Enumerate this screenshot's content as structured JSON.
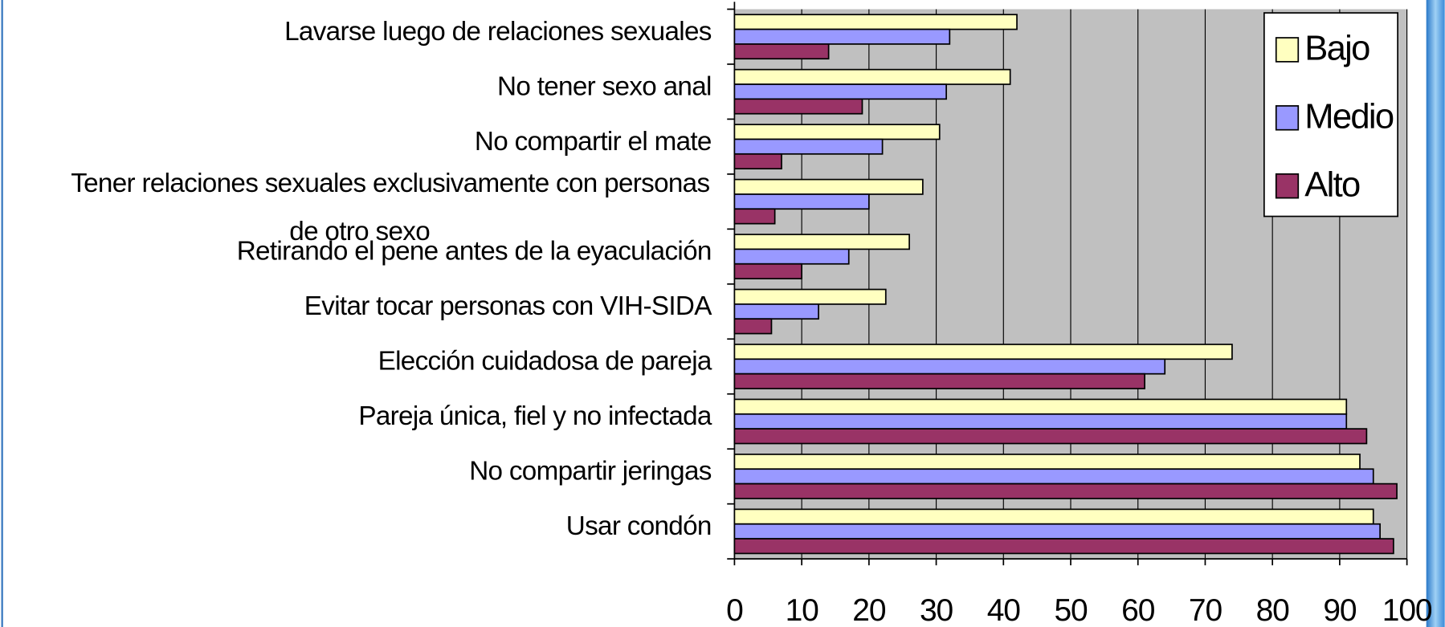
{
  "chart_data": {
    "type": "hbar",
    "categories": [
      "Lavarse luego de relaciones sexuales",
      "No tener sexo anal",
      "No compartir el mate",
      [
        "Tener relaciones sexuales exclusivamente con personas",
        "de otro sexo"
      ],
      "Retirando el pene antes de la eyaculación",
      "Evitar tocar personas con VIH-SIDA",
      "Elección cuidadosa de pareja",
      "Pareja única, fiel y no infectada",
      "No compartir jeringas",
      "Usar condón"
    ],
    "series": [
      {
        "name": "Bajo",
        "color": "#ffffc0",
        "values": [
          42,
          41,
          30.5,
          28,
          26,
          22.5,
          74,
          91,
          93,
          95
        ]
      },
      {
        "name": "Medio",
        "color": "#9999ff",
        "values": [
          32,
          31.5,
          22,
          20,
          17,
          12.5,
          64,
          91,
          95,
          96
        ]
      },
      {
        "name": "Alto",
        "color": "#993366",
        "values": [
          14,
          19,
          7,
          6,
          10,
          5.5,
          61,
          94,
          98.5,
          98
        ]
      }
    ],
    "xlim": [
      0,
      100
    ],
    "xticks": [
      0,
      10,
      20,
      30,
      40,
      50,
      60,
      70,
      80,
      90,
      100
    ],
    "grid": true,
    "legend": "top-right"
  }
}
